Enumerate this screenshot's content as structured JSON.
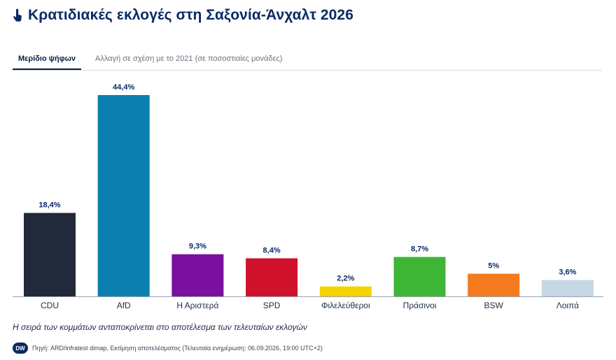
{
  "header": {
    "title": "Κρατιδιακές εκλογές στη Σαξονία-Άνχαλτ 2026",
    "icon": "tap-hand-icon"
  },
  "tabs": [
    {
      "label": "Μερίδιο ψήφων",
      "active": true
    },
    {
      "label": "Αλλαγή σε σχέση με το 2021 (σε ποσοστιαίες μονάδες)",
      "active": false
    }
  ],
  "chart_data": {
    "type": "bar",
    "categories": [
      "CDU",
      "AfD",
      "Η Αριστερά",
      "SPD",
      "Φιλελεύθεροι",
      "Πράσινοι",
      "BSW",
      "Λοιπά"
    ],
    "values": [
      18.4,
      44.4,
      9.3,
      8.4,
      2.2,
      8.7,
      5,
      3.6
    ],
    "value_labels": [
      "18,4%",
      "44,4%",
      "9,3%",
      "8,4%",
      "2,2%",
      "8,7%",
      "5%",
      "3,6%"
    ],
    "colors": [
      "#22293a",
      "#0b7fb0",
      "#7b0f9e",
      "#d0112b",
      "#f6d300",
      "#3fb535",
      "#f47b20",
      "#c5d8e6"
    ],
    "ylim": [
      0,
      44.4
    ],
    "grid": false,
    "legend": "none"
  },
  "note": "Η σειρά των κομμάτων ανταποκρίνεται στο αποτέλεσμα των τελευταίων εκλογών",
  "footer": {
    "logo": "DW",
    "source": "Πηγή: ARD/infratest dimap, Εκτίμηση αποτελέσματος (Τελευταία ενημέρωση: 06.09.2026, 19:00 UTC+2)"
  }
}
